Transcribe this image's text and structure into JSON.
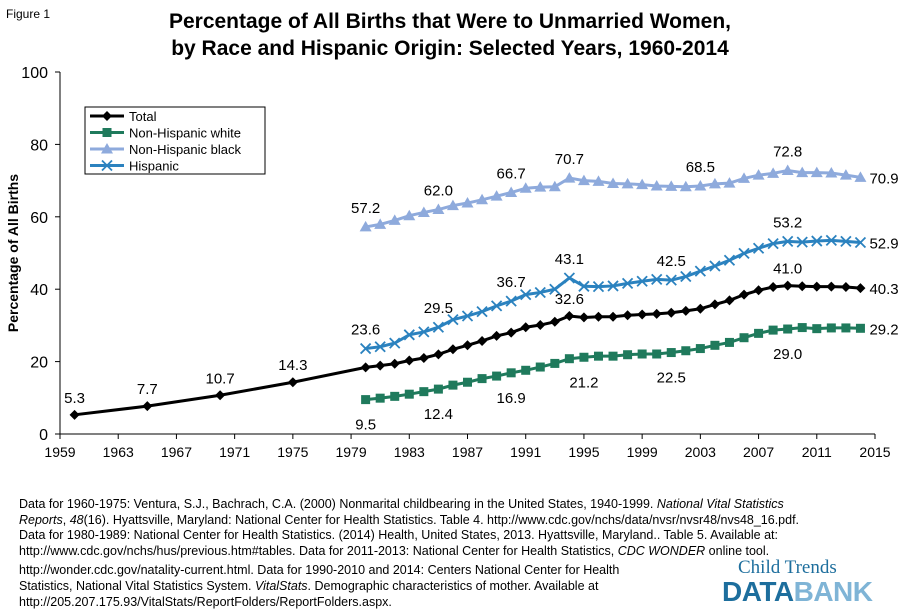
{
  "figure_label": "Figure 1",
  "title_line1": "Percentage of All Births that Were to Unmarried Women,",
  "title_line2": "by Race and Hispanic Origin: Selected Years, 1960-2014",
  "source_lines": [
    {
      "parts": [
        {
          "t": "Data for 1960-1975: Ventura, S.J., Bachrach, C.A. (2000) Nonmarital childbearing in the United States, 1940-1999. "
        },
        {
          "t": "National Vital Statistics",
          "i": true
        }
      ]
    },
    {
      "parts": [
        {
          "t": "Reports",
          "i": true
        },
        {
          "t": ", "
        },
        {
          "t": "48",
          "i": true
        },
        {
          "t": "(16). Hyattsville, Maryland: National Center for Health Statistics. Table 4. http://www.cdc.gov/nchs/data/nvsr/nvsr48/nvs48_16.pdf."
        }
      ]
    },
    {
      "parts": [
        {
          "t": "Data for 1980-1989: National Center for Health Statistics. (2014) Health, United States, 2013. Hyattsville, Maryland.. Table 5. Available at:"
        }
      ]
    },
    {
      "parts": [
        {
          "t": "http://www.cdc.gov/nchs/hus/previous.htm#tables. Data for 2011-2013: National Center for Health Statistics, "
        },
        {
          "t": "CDC WONDER",
          "i": true
        },
        {
          "t": " online tool."
        }
      ]
    },
    {
      "gap": true,
      "parts": [
        {
          "t": "http://wonder.cdc.gov/natality-current.html. Data for 1990-2010 and 2014: Centers National Center for Health"
        }
      ]
    },
    {
      "parts": [
        {
          "t": "Statistics, National Vital Statistics System. "
        },
        {
          "t": "VitalStats",
          "i": true
        },
        {
          "t": ". Demographic characteristics of mother. Available at"
        }
      ]
    },
    {
      "parts": [
        {
          "t": "http://205.207.175.93/VitalStats/ReportFolders/ReportFolders.aspx."
        }
      ]
    }
  ],
  "logo": {
    "line1": "Child Trends",
    "line2a": "DATA",
    "line2b": "BANK"
  },
  "chart_data": {
    "type": "line",
    "title": "Percentage of All Births that Were to Unmarried Women, by Race and Hispanic Origin: Selected Years, 1960-2014",
    "xlabel": "",
    "ylabel": "Percentage of All Births",
    "xlim": [
      1959,
      2015
    ],
    "ylim": [
      0,
      100
    ],
    "x_ticks": [
      1959,
      1963,
      1967,
      1971,
      1975,
      1979,
      1983,
      1987,
      1991,
      1995,
      1999,
      2003,
      2007,
      2011,
      2015
    ],
    "y_ticks": [
      0,
      20,
      40,
      60,
      80,
      100
    ],
    "grid": false,
    "legend_position": "top-left",
    "series": [
      {
        "name": "Total",
        "color": "#000000",
        "marker": "diamond",
        "x": [
          1960,
          1965,
          1970,
          1975,
          1980,
          1981,
          1982,
          1983,
          1984,
          1985,
          1986,
          1987,
          1988,
          1989,
          1990,
          1991,
          1992,
          1993,
          1994,
          1995,
          1996,
          1997,
          1998,
          1999,
          2000,
          2001,
          2002,
          2003,
          2004,
          2005,
          2006,
          2007,
          2008,
          2009,
          2010,
          2011,
          2012,
          2013,
          2014
        ],
        "y": [
          5.3,
          7.7,
          10.7,
          14.3,
          18.4,
          18.9,
          19.4,
          20.3,
          21.0,
          22.0,
          23.4,
          24.5,
          25.7,
          27.1,
          28.0,
          29.5,
          30.1,
          31.0,
          32.6,
          32.2,
          32.4,
          32.4,
          32.8,
          33.0,
          33.2,
          33.5,
          34.0,
          34.6,
          35.8,
          36.9,
          38.5,
          39.7,
          40.6,
          41.0,
          40.8,
          40.7,
          40.7,
          40.6,
          40.3
        ],
        "labels": [
          {
            "x": 1960,
            "y": 5.3,
            "text": "5.3"
          },
          {
            "x": 1965,
            "y": 7.7,
            "text": "7.7"
          },
          {
            "x": 1970,
            "y": 10.7,
            "text": "10.7"
          },
          {
            "x": 1975,
            "y": 14.3,
            "text": "14.3"
          },
          {
            "x": 1994,
            "y": 32.6,
            "text": "32.6"
          },
          {
            "x": 2009,
            "y": 41.0,
            "text": "41.0"
          },
          {
            "x": 2014,
            "y": 40.3,
            "text": "40.3"
          }
        ]
      },
      {
        "name": "Non-Hispanic white",
        "color": "#1f7a5c",
        "marker": "square",
        "x": [
          1980,
          1981,
          1982,
          1983,
          1984,
          1985,
          1986,
          1987,
          1988,
          1989,
          1990,
          1991,
          1992,
          1993,
          1994,
          1995,
          1996,
          1997,
          1998,
          1999,
          2000,
          2001,
          2002,
          2003,
          2004,
          2005,
          2006,
          2007,
          2008,
          2009,
          2010,
          2011,
          2012,
          2013,
          2014
        ],
        "y": [
          9.5,
          9.9,
          10.4,
          11.0,
          11.7,
          12.4,
          13.5,
          14.3,
          15.3,
          16.0,
          16.9,
          17.6,
          18.5,
          19.5,
          20.8,
          21.2,
          21.5,
          21.5,
          21.9,
          22.1,
          22.1,
          22.5,
          23.0,
          23.6,
          24.5,
          25.3,
          26.6,
          27.8,
          28.7,
          29.0,
          29.4,
          29.1,
          29.3,
          29.3,
          29.2
        ],
        "labels": [
          {
            "x": 1980,
            "y": 9.5,
            "text": "9.5"
          },
          {
            "x": 1985,
            "y": 12.4,
            "text": "12.4"
          },
          {
            "x": 1990,
            "y": 16.9,
            "text": "16.9"
          },
          {
            "x": 1995,
            "y": 21.2,
            "text": "21.2"
          },
          {
            "x": 2001,
            "y": 22.5,
            "text": "22.5"
          },
          {
            "x": 2009,
            "y": 29.0,
            "text": "29.0"
          },
          {
            "x": 2014,
            "y": 29.2,
            "text": "29.2"
          }
        ]
      },
      {
        "name": "Non-Hispanic black",
        "color": "#8eaadc",
        "marker": "triangle",
        "x": [
          1980,
          1981,
          1982,
          1983,
          1984,
          1985,
          1986,
          1987,
          1988,
          1989,
          1990,
          1991,
          1992,
          1993,
          1994,
          1995,
          1996,
          1997,
          1998,
          1999,
          2000,
          2001,
          2002,
          2003,
          2004,
          2005,
          2006,
          2007,
          2008,
          2009,
          2010,
          2011,
          2012,
          2013,
          2014
        ],
        "y": [
          57.2,
          57.9,
          59.0,
          60.3,
          61.2,
          62.0,
          63.1,
          63.8,
          64.7,
          65.7,
          66.7,
          67.9,
          68.2,
          68.3,
          70.7,
          70.0,
          69.8,
          69.2,
          69.1,
          68.9,
          68.5,
          68.4,
          68.3,
          68.5,
          69.1,
          69.3,
          70.6,
          71.5,
          72.0,
          72.8,
          72.2,
          72.2,
          72.1,
          71.5,
          70.9
        ],
        "labels": [
          {
            "x": 1980,
            "y": 57.2,
            "text": "57.2"
          },
          {
            "x": 1985,
            "y": 62.0,
            "text": "62.0"
          },
          {
            "x": 1990,
            "y": 66.7,
            "text": "66.7"
          },
          {
            "x": 1994,
            "y": 70.7,
            "text": "70.7"
          },
          {
            "x": 2003,
            "y": 68.5,
            "text": "68.5"
          },
          {
            "x": 2009,
            "y": 72.8,
            "text": "72.8"
          },
          {
            "x": 2014,
            "y": 70.9,
            "text": "70.9"
          }
        ]
      },
      {
        "name": "Hispanic",
        "color": "#2b82bf",
        "marker": "x",
        "x": [
          1980,
          1981,
          1982,
          1983,
          1984,
          1985,
          1986,
          1987,
          1988,
          1989,
          1990,
          1991,
          1992,
          1993,
          1994,
          1995,
          1996,
          1997,
          1998,
          1999,
          2000,
          2001,
          2002,
          2003,
          2004,
          2005,
          2006,
          2007,
          2008,
          2009,
          2010,
          2011,
          2012,
          2013,
          2014
        ],
        "y": [
          23.6,
          24.1,
          25.1,
          27.4,
          28.2,
          29.5,
          31.6,
          32.6,
          33.8,
          35.4,
          36.7,
          38.5,
          39.1,
          40.0,
          43.1,
          40.8,
          40.7,
          40.9,
          41.6,
          42.2,
          42.7,
          42.5,
          43.5,
          45.0,
          46.4,
          48.0,
          49.9,
          51.3,
          52.6,
          53.2,
          53.0,
          53.3,
          53.5,
          53.2,
          52.9
        ],
        "labels": [
          {
            "x": 1980,
            "y": 23.6,
            "text": "23.6"
          },
          {
            "x": 1985,
            "y": 29.5,
            "text": "29.5"
          },
          {
            "x": 1990,
            "y": 36.7,
            "text": "36.7"
          },
          {
            "x": 1994,
            "y": 43.1,
            "text": "43.1"
          },
          {
            "x": 2001,
            "y": 42.5,
            "text": "42.5"
          },
          {
            "x": 2009,
            "y": 53.2,
            "text": "53.2"
          },
          {
            "x": 2014,
            "y": 52.9,
            "text": "52.9"
          }
        ]
      }
    ]
  }
}
